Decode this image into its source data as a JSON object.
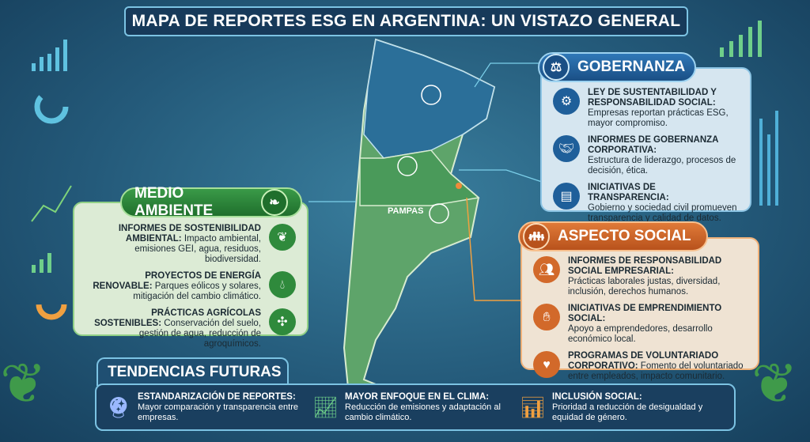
{
  "title": "MAPA DE REPORTES ESG EN ARGENTINA: UN VISTAZO GENERAL",
  "map": {
    "region_label": "PAMPAS"
  },
  "environment": {
    "header": "MEDIO AMBIENTE",
    "color": "#2f8a3c",
    "items": [
      {
        "title": "INFORMES DE SOSTENIBILIDAD AMBIENTAL:",
        "text": "Impacto ambiental, emisiones GEI, agua, residuos, biodiversidad.",
        "icon": "leaf-icon"
      },
      {
        "title": "PROYECTOS DE ENERGÍA RENOVABLE:",
        "text": "Parques eólicos y solares, mitigación del cambio climático.",
        "icon": "water-drop-icon"
      },
      {
        "title": "PRÁCTICAS AGRÍCOLAS SOSTENIBLES:",
        "text": "Conservación del suelo, gestión de agua, reducción de agroquímicos.",
        "icon": "wind-turbine-icon"
      }
    ]
  },
  "governance": {
    "header": "GOBERNANZA",
    "color": "#1f5f9a",
    "items": [
      {
        "title": "LEY DE SUSTENTABILIDAD Y RESPONSABILIDAD SOCIAL:",
        "text": "Empresas reportan prácticas ESG, mayor compromiso.",
        "icon": "gears-icon"
      },
      {
        "title": "INFORMES DE GOBERNANZA CORPORATIVA:",
        "text": "Estructura de liderazgo, procesos de decisión, ética.",
        "icon": "handshake-icon"
      },
      {
        "title": "INICIATIVAS DE TRANSPARENCIA:",
        "text": "Gobierno y sociedad civil promueven transparencia y calidad de datos.",
        "icon": "document-icon"
      }
    ]
  },
  "social": {
    "header": "ASPECTO SOCIAL",
    "color": "#d2692a",
    "items": [
      {
        "title": "INFORMES DE RESPONSABILIDAD SOCIAL EMPRESARIAL:",
        "text": "Prácticas laborales justas, diversidad, inclusión, derechos humanos.",
        "icon": "people-icon"
      },
      {
        "title": "INICIATIVAS DE EMPRENDIMIENTO SOCIAL:",
        "text": "Apoyo a emprendedores, desarrollo económico local.",
        "icon": "hands-icon"
      },
      {
        "title": "PROGRAMAS DE VOLUNTARIADO CORPORATIVO:",
        "text": "Fomento del voluntariado entre empleados, impacto comunitario.",
        "icon": "heart-hand-icon"
      }
    ]
  },
  "trends": {
    "header": "TENDENCIAS FUTURAS",
    "items": [
      {
        "title": "ESTANDARIZACIÓN DE REPORTES:",
        "text": "Mayor comparación y transparencia entre empresas.",
        "icon": "crystal-ball-icon"
      },
      {
        "title": "MAYOR ENFOQUE EN EL CLIMA:",
        "text": "Reducción de emisiones y adaptación al cambio climático.",
        "icon": "growth-chart-icon"
      },
      {
        "title": "INCLUSIÓN SOCIAL:",
        "text": "Prioridad a reducción de desigualdad y equidad de género.",
        "icon": "bar-chart-arrow-icon"
      }
    ]
  }
}
